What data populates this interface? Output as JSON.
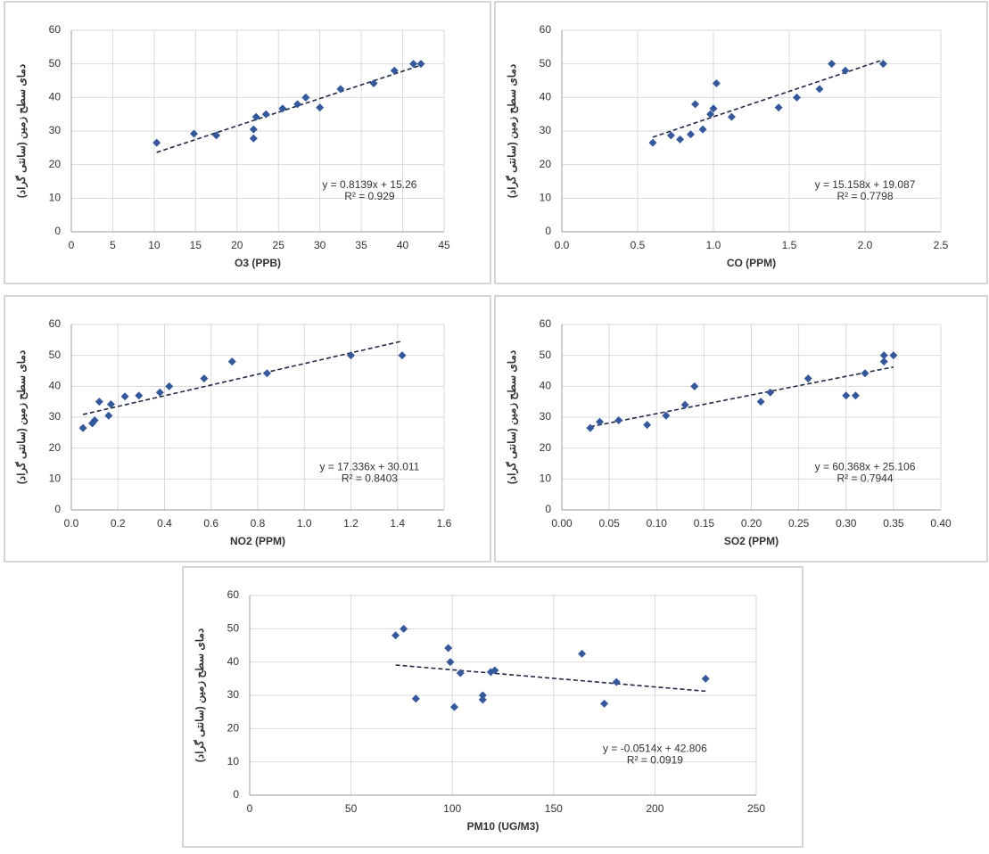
{
  "chart_data": [
    {
      "type": "scatter",
      "xlabel": "O3 (PPB)",
      "ylabel": "دمای سطح زمین (سانتی گراد)",
      "x": [
        10.3,
        14.8,
        17.5,
        22,
        22,
        22.3,
        23.5,
        25.5,
        27.3,
        28.3,
        30,
        32.5,
        36.5,
        39,
        41.3,
        42.2
      ],
      "values": [
        26.5,
        29.2,
        28.7,
        27.8,
        30.5,
        34.2,
        35,
        36.7,
        38,
        40,
        37,
        42.5,
        44.2,
        48,
        50,
        50
      ],
      "color": "#34589a",
      "trendline": {
        "slope": 0.8139,
        "intercept": 15.26
      },
      "annotation": [
        "y = 0.8139x + 15.26",
        "R² = 0.929"
      ],
      "xlim": [
        0,
        45
      ],
      "xticks": [
        0,
        5,
        10,
        15,
        20,
        25,
        30,
        35,
        40,
        45
      ],
      "ylim": [
        0,
        60
      ],
      "yticks": [
        0,
        10,
        20,
        30,
        40,
        50,
        60
      ],
      "grid": true
    },
    {
      "type": "scatter",
      "xlabel": "CO (PPM)",
      "ylabel": "دمای سطح زمین (سانتی گراد)",
      "x": [
        0.6,
        0.72,
        0.78,
        0.85,
        0.88,
        0.93,
        0.98,
        1.0,
        1.02,
        1.12,
        1.43,
        1.55,
        1.7,
        1.78,
        1.87,
        2.12
      ],
      "values": [
        26.5,
        28.7,
        27.5,
        29,
        38,
        30.5,
        35,
        36.7,
        44.2,
        34.2,
        37,
        40,
        42.5,
        50,
        48,
        50
      ],
      "color": "#34589a",
      "trendline": {
        "slope": 15.158,
        "intercept": 19.087
      },
      "annotation": [
        "y = 15.158x + 19.087",
        "R² = 0.7798"
      ],
      "xlim": [
        0,
        2.5
      ],
      "xticks": [
        {
          "value": 0,
          "label": "0.0"
        },
        0.5,
        {
          "value": 1,
          "label": "1.0"
        },
        1.5,
        {
          "value": 2,
          "label": "2.0"
        },
        2.5
      ],
      "ylim": [
        0,
        60
      ],
      "yticks": [
        0,
        10,
        20,
        30,
        40,
        50,
        60
      ],
      "grid": true
    },
    {
      "type": "scatter",
      "xlabel": "NO2 (PPM)",
      "ylabel": "دمای سطح زمین (سانتی گراد)",
      "x": [
        0.05,
        0.09,
        0.1,
        0.12,
        0.16,
        0.17,
        0.23,
        0.29,
        0.38,
        0.42,
        0.57,
        0.69,
        0.84,
        1.2,
        1.42
      ],
      "values": [
        26.5,
        28,
        29,
        35,
        30.5,
        34.2,
        36.7,
        37,
        38,
        40,
        42.5,
        48,
        44.2,
        50,
        50
      ],
      "color": "#34589a",
      "trendline": {
        "slope": 17.336,
        "intercept": 30.011
      },
      "annotation": [
        "y = 17.336x + 30.011",
        "R² = 0.8403"
      ],
      "xlim": [
        0,
        1.6
      ],
      "xticks": [
        {
          "value": 0,
          "label": "0.0"
        },
        0.2,
        0.4,
        0.6,
        0.8,
        {
          "value": 1,
          "label": "1.0"
        },
        1.2,
        1.4,
        1.6
      ],
      "ylim": [
        0,
        60
      ],
      "yticks": [
        0,
        10,
        20,
        30,
        40,
        50,
        60
      ],
      "grid": true
    },
    {
      "type": "scatter",
      "xlabel": "SO2 (PPM)",
      "ylabel": "دمای سطح زمین (سانتی گراد)",
      "x": [
        0.03,
        0.04,
        0.06,
        0.09,
        0.11,
        0.13,
        0.14,
        0.21,
        0.22,
        0.26,
        0.3,
        0.31,
        0.32,
        0.34,
        0.34,
        0.35
      ],
      "values": [
        26.5,
        28.5,
        29,
        27.5,
        30.5,
        34,
        40,
        35,
        38,
        42.5,
        37,
        37,
        44.2,
        48,
        50,
        50
      ],
      "color": "#34589a",
      "trendline": {
        "slope": 60.368,
        "intercept": 25.106
      },
      "annotation": [
        "y = 60.368x + 25.106",
        "R² = 0.7944"
      ],
      "xlim": [
        0,
        0.4
      ],
      "xticks": [
        {
          "value": 0,
          "label": "0.00"
        },
        0.05,
        {
          "value": 0.1,
          "label": "0.10"
        },
        0.15,
        {
          "value": 0.2,
          "label": "0.20"
        },
        0.25,
        {
          "value": 0.3,
          "label": "0.30"
        },
        0.35,
        {
          "value": 0.4,
          "label": "0.40"
        }
      ],
      "ylim": [
        0,
        60
      ],
      "yticks": [
        0,
        10,
        20,
        30,
        40,
        50,
        60
      ],
      "grid": true
    },
    {
      "type": "scatter",
      "xlabel": "PM10 (UG/M3)",
      "ylabel": "دمای سطح زمین (سانتی گراد)",
      "x": [
        72,
        76,
        82,
        98,
        99,
        101,
        104,
        115,
        115,
        119,
        121,
        164,
        175,
        181,
        225
      ],
      "values": [
        48,
        50,
        29,
        44.2,
        40,
        26.5,
        36.7,
        28.7,
        30,
        37,
        37.5,
        42.5,
        27.5,
        34,
        35
      ],
      "color": "#34589a",
      "trendline": {
        "slope": -0.0514,
        "intercept": 42.806
      },
      "annotation": [
        "y = -0.0514x + 42.806",
        "R² = 0.0919"
      ],
      "xlim": [
        0,
        250
      ],
      "xticks": [
        0,
        50,
        100,
        150,
        200,
        250
      ],
      "ylim": [
        0,
        60
      ],
      "yticks": [
        0,
        10,
        20,
        30,
        40,
        50,
        60
      ],
      "grid": true
    }
  ]
}
